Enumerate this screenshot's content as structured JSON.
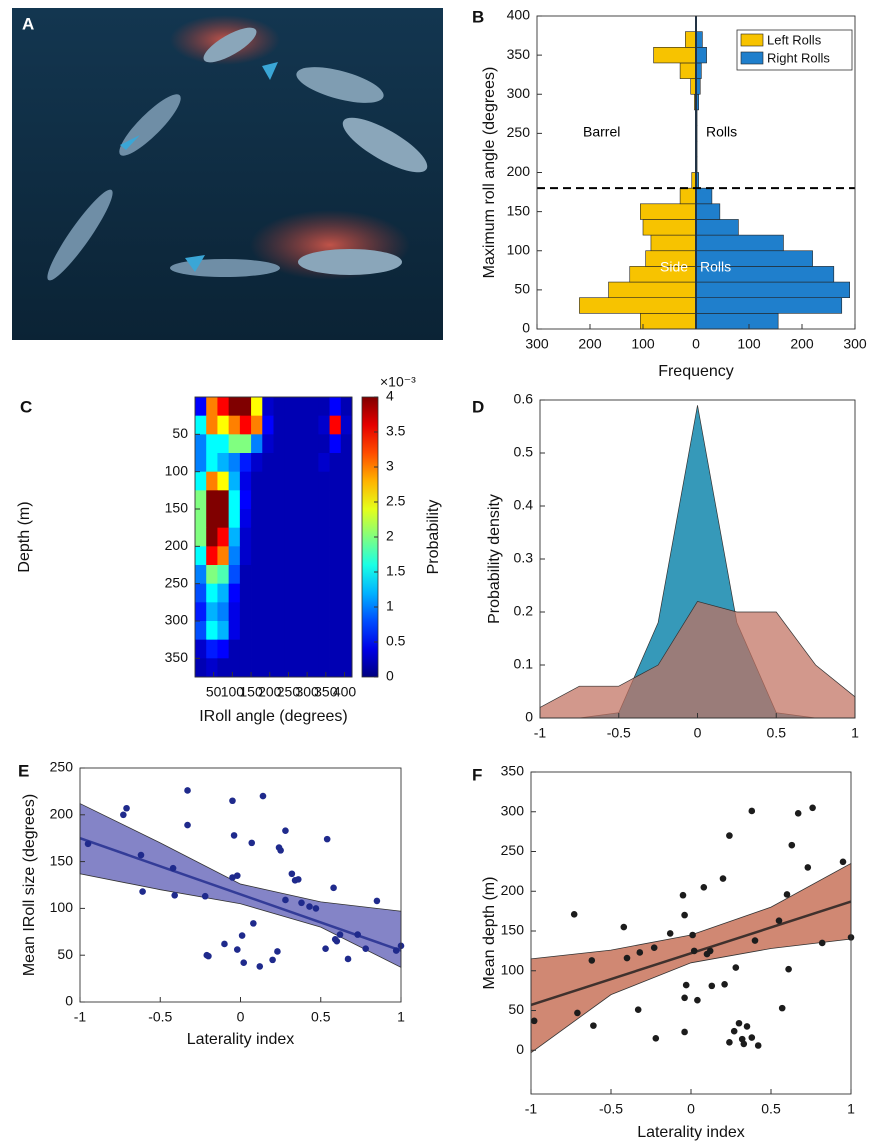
{
  "image_panel": {
    "label": "A"
  },
  "chart_data": [
    {
      "type": "histogram",
      "panel_label": "B",
      "ylabel": "Maximum roll angle (degrees)",
      "xlabel": "Frequency",
      "bins": [
        0,
        20,
        40,
        60,
        80,
        100,
        120,
        140,
        160,
        180,
        200,
        220,
        240,
        260,
        280,
        300,
        320,
        340,
        360,
        380,
        400
      ],
      "series": [
        {
          "name": "Left Rolls",
          "color": "#f7c300",
          "values": [
            105,
            220,
            165,
            125,
            95,
            85,
            100,
            105,
            30,
            8,
            0,
            0,
            0,
            0,
            3,
            10,
            30,
            80,
            20,
            0
          ]
        },
        {
          "name": "Right Rolls",
          "color": "#1f7fcc",
          "values": [
            155,
            275,
            290,
            260,
            220,
            165,
            80,
            45,
            30,
            5,
            2,
            2,
            2,
            2,
            5,
            8,
            10,
            20,
            12,
            0
          ]
        }
      ],
      "xlim": [
        -300,
        300
      ],
      "xticks": [
        {
          "value": -300,
          "label": "300"
        },
        {
          "value": -200,
          "label": "200"
        },
        {
          "value": -100,
          "label": "100"
        },
        0,
        100,
        200,
        300
      ],
      "ylim": [
        0,
        400
      ],
      "yticks": [
        0,
        50,
        100,
        150,
        200,
        250,
        300,
        350,
        400
      ],
      "reference_line": 180,
      "annotations": [
        "Barrel",
        "Rolls",
        "Side",
        "Rolls"
      ],
      "legend": "upper right"
    },
    {
      "type": "heatmap",
      "panel_label": "C",
      "xlabel": "IRoll angle (degrees)",
      "ylabel": "Depth (m)",
      "x_bins": [
        0,
        30,
        60,
        90,
        120,
        150,
        180,
        210,
        240,
        270,
        300,
        330,
        360,
        390,
        420
      ],
      "y_bins": [
        0,
        25,
        50,
        75,
        100,
        125,
        150,
        175,
        200,
        225,
        250,
        275,
        300,
        325,
        350,
        375
      ],
      "z": [
        [
          0.5,
          3,
          3.5,
          4,
          4,
          2.5,
          0.3,
          0.2,
          0.2,
          0.2,
          0.2,
          0.2,
          0.5,
          0.2
        ],
        [
          1.5,
          3,
          2.5,
          3,
          3.5,
          3,
          0.5,
          0.2,
          0.2,
          0.2,
          0.2,
          0.3,
          3.5,
          0.3
        ],
        [
          1,
          1.5,
          1.5,
          2,
          2,
          1,
          0.3,
          0.2,
          0.2,
          0.2,
          0.2,
          0.2,
          0.5,
          0.2
        ],
        [
          1,
          1.5,
          1.2,
          1,
          0.6,
          0.3,
          0.2,
          0.2,
          0.2,
          0.2,
          0.2,
          0.3,
          0.2,
          0.2
        ],
        [
          1.5,
          3,
          2.5,
          1.2,
          0.4,
          0.2,
          0.2,
          0.2,
          0.2,
          0.2,
          0.2,
          0.2,
          0.2,
          0.2
        ],
        [
          2,
          4,
          4,
          1.5,
          0.5,
          0.2,
          0.2,
          0.2,
          0.2,
          0.2,
          0.2,
          0.2,
          0.2,
          0.2
        ],
        [
          2,
          4,
          4,
          1.5,
          0.4,
          0.2,
          0.2,
          0.2,
          0.2,
          0.2,
          0.2,
          0.2,
          0.2,
          0.2
        ],
        [
          2,
          4,
          3.5,
          1.2,
          0.3,
          0.2,
          0.2,
          0.2,
          0.2,
          0.2,
          0.2,
          0.2,
          0.2,
          0.2
        ],
        [
          1.5,
          3.5,
          3,
          1,
          0.3,
          0.2,
          0.2,
          0.2,
          0.2,
          0.2,
          0.2,
          0.2,
          0.2,
          0.2
        ],
        [
          1,
          2,
          1.8,
          0.8,
          0.2,
          0.2,
          0.2,
          0.2,
          0.2,
          0.2,
          0.2,
          0.2,
          0.2,
          0.2
        ],
        [
          0.8,
          1.5,
          1.2,
          0.5,
          0.2,
          0.2,
          0.2,
          0.2,
          0.2,
          0.2,
          0.2,
          0.2,
          0.2,
          0.2
        ],
        [
          0.6,
          1.2,
          1,
          0.4,
          0.2,
          0.2,
          0.2,
          0.2,
          0.2,
          0.2,
          0.2,
          0.2,
          0.2,
          0.2
        ],
        [
          0.8,
          1.5,
          1.2,
          0.4,
          0.2,
          0.2,
          0.2,
          0.2,
          0.2,
          0.2,
          0.2,
          0.2,
          0.2,
          0.2
        ],
        [
          0.3,
          0.6,
          0.5,
          0.2,
          0.2,
          0.2,
          0.2,
          0.2,
          0.2,
          0.2,
          0.2,
          0.2,
          0.2,
          0.2
        ],
        [
          0.2,
          0.3,
          0.2,
          0.2,
          0.2,
          0.2,
          0.2,
          0.2,
          0.2,
          0.2,
          0.2,
          0.2,
          0.2,
          0.2
        ]
      ],
      "xlim": [
        0,
        420
      ],
      "ylim": [
        0,
        375
      ],
      "y_reversed": true,
      "xticks": [
        50,
        100,
        150,
        200,
        250,
        300,
        350,
        400
      ],
      "yticks": [
        50,
        100,
        150,
        200,
        250,
        300,
        350
      ],
      "colormap": "jet",
      "clim": [
        0,
        4
      ],
      "cticks": [
        0,
        0.5,
        1,
        1.5,
        2,
        2.5,
        3,
        3.5,
        4
      ],
      "colorbar_label": "Probability",
      "colorbar_exponent": "×10⁻³"
    },
    {
      "type": "area",
      "panel_label": "D",
      "ylabel": "Probability density",
      "x": [
        -1,
        -0.75,
        -0.5,
        -0.25,
        0,
        0.25,
        0.5,
        0.75,
        1
      ],
      "series": [
        {
          "color": "#2b93b5",
          "values": [
            0,
            0,
            0.01,
            0.18,
            0.59,
            0.18,
            0.01,
            0,
            0
          ]
        },
        {
          "color": "#c0705f",
          "values": [
            0.02,
            0.06,
            0.06,
            0.1,
            0.22,
            0.2,
            0.2,
            0.1,
            0.04
          ]
        }
      ],
      "xlim": [
        -1,
        1
      ],
      "ylim": [
        0,
        0.6
      ],
      "xticks": [
        -1,
        -0.5,
        0,
        0.5,
        1
      ],
      "yticks": [
        0,
        0.1,
        0.2,
        0.3,
        0.4,
        0.5,
        0.6
      ]
    },
    {
      "type": "scatter",
      "panel_label": "E",
      "xlabel": "Laterality index",
      "ylabel": "Mean IRoll size (degrees)",
      "color": "#1f2a8c",
      "band_color": "#6f6fbd",
      "x": [
        -0.95,
        -0.73,
        -0.71,
        -0.62,
        -0.61,
        -0.42,
        -0.41,
        -0.33,
        -0.33,
        -0.22,
        -0.21,
        -0.2,
        -0.1,
        -0.05,
        -0.05,
        -0.04,
        -0.02,
        -0.02,
        0.01,
        0.02,
        0.07,
        0.08,
        0.12,
        0.14,
        0.2,
        0.23,
        0.24,
        0.25,
        0.28,
        0.28,
        0.32,
        0.34,
        0.36,
        0.38,
        0.43,
        0.47,
        0.53,
        0.54,
        0.58,
        0.59,
        0.6,
        0.62,
        0.67,
        0.73,
        0.78,
        0.85,
        0.97,
        1
      ],
      "y": [
        169,
        200,
        207,
        157,
        118,
        143,
        114,
        226,
        189,
        113,
        50,
        49,
        62,
        215,
        133,
        178,
        56,
        135,
        71,
        42,
        170,
        84,
        38,
        220,
        45,
        54,
        165,
        162,
        183,
        109,
        137,
        130,
        131,
        106,
        102,
        100,
        57,
        174,
        122,
        67,
        65,
        72,
        46,
        72,
        57,
        108,
        55,
        60
      ],
      "fit": {
        "x": [
          -1,
          1
        ],
        "y": [
          175,
          55
        ]
      },
      "band": {
        "x": [
          -1,
          -0.5,
          0,
          0.5,
          1
        ],
        "upper": [
          212,
          170,
          126,
          107,
          97
        ],
        "lower": [
          137,
          120,
          105,
          80,
          37
        ]
      },
      "xlim": [
        -1,
        1
      ],
      "ylim": [
        0,
        250
      ],
      "xticks": [
        -1,
        -0.5,
        0,
        0.5,
        1
      ],
      "yticks": [
        0,
        50,
        100,
        150,
        200,
        250
      ]
    },
    {
      "type": "scatter",
      "panel_label": "F",
      "xlabel": "Laterality index",
      "ylabel": "Mean depth (m)",
      "color": "#1c1c1c",
      "band_color": "#c8735a",
      "x": [
        -0.98,
        -0.73,
        -0.71,
        -0.62,
        -0.61,
        -0.42,
        -0.4,
        -0.33,
        -0.32,
        -0.23,
        -0.22,
        -0.13,
        -0.05,
        -0.04,
        -0.04,
        -0.04,
        -0.03,
        0.01,
        0.02,
        0.04,
        0.08,
        0.1,
        0.12,
        0.13,
        0.2,
        0.21,
        0.24,
        0.24,
        0.27,
        0.28,
        0.3,
        0.32,
        0.33,
        0.35,
        0.38,
        0.38,
        0.4,
        0.42,
        0.55,
        0.57,
        0.6,
        0.61,
        0.63,
        0.67,
        0.73,
        0.76,
        0.82,
        0.95,
        1
      ],
      "y": [
        37,
        171,
        47,
        113,
        31,
        155,
        116,
        51,
        123,
        129,
        15,
        147,
        195,
        170,
        66,
        23,
        82,
        145,
        125,
        63,
        205,
        121,
        125,
        81,
        216,
        83,
        270,
        10,
        24,
        104,
        34,
        14,
        8,
        30,
        301,
        16,
        138,
        6,
        163,
        53,
        196,
        102,
        258,
        298,
        230,
        305,
        135,
        237,
        142
      ],
      "fit": {
        "x": [
          -1,
          1
        ],
        "y": [
          57,
          187
        ]
      },
      "band": {
        "x": [
          -1,
          -0.5,
          0,
          0.5,
          1
        ],
        "upper": [
          115,
          126,
          145,
          180,
          235
        ],
        "lower": [
          -3,
          70,
          110,
          128,
          140
        ]
      },
      "xlim": [
        -1,
        1
      ],
      "ylim": [
        -55,
        350
      ],
      "xticks": [
        -1,
        -0.5,
        0,
        0.5,
        1
      ],
      "yticks": [
        0,
        50,
        100,
        150,
        200,
        250,
        300,
        350
      ]
    }
  ]
}
